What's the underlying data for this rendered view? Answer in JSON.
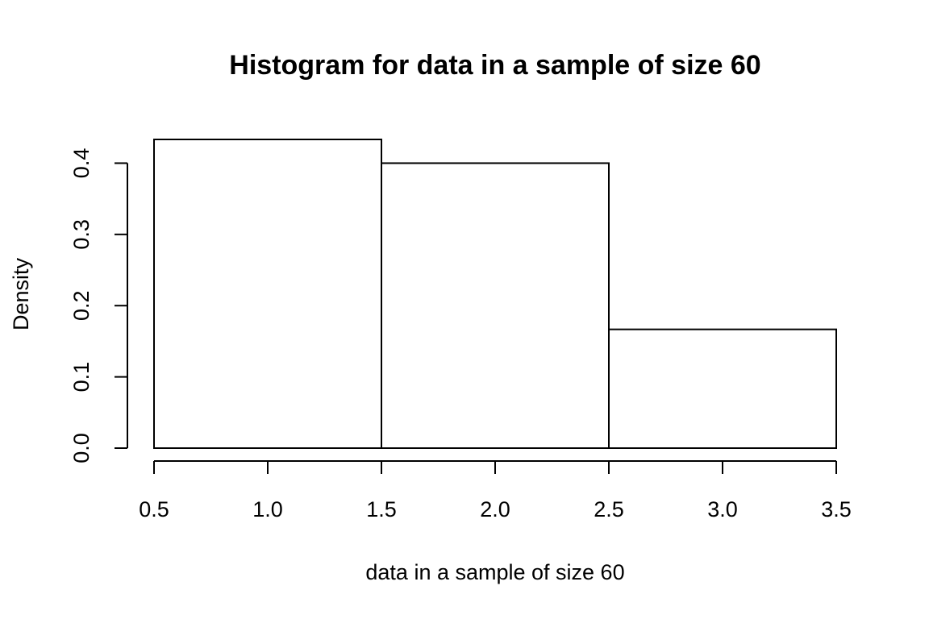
{
  "chart_data": {
    "type": "histogram",
    "title": "Histogram for data in a sample of size 60",
    "xlabel": "data in a sample of size 60",
    "ylabel": "Density",
    "bins": [
      {
        "start": 0.5,
        "end": 1.5,
        "density": 0.4333
      },
      {
        "start": 1.5,
        "end": 2.5,
        "density": 0.4
      },
      {
        "start": 2.5,
        "end": 3.5,
        "density": 0.1667
      }
    ],
    "xlim": [
      0.5,
      3.5
    ],
    "ylim": [
      0,
      0.4333
    ],
    "x_ticks": [
      "0.5",
      "1.0",
      "1.5",
      "2.0",
      "2.5",
      "3.0",
      "3.5"
    ],
    "y_ticks": [
      "0.0",
      "0.1",
      "0.2",
      "0.3",
      "0.4"
    ],
    "bar_fill": "#ffffff",
    "bar_stroke": "#000000",
    "grid": false
  }
}
